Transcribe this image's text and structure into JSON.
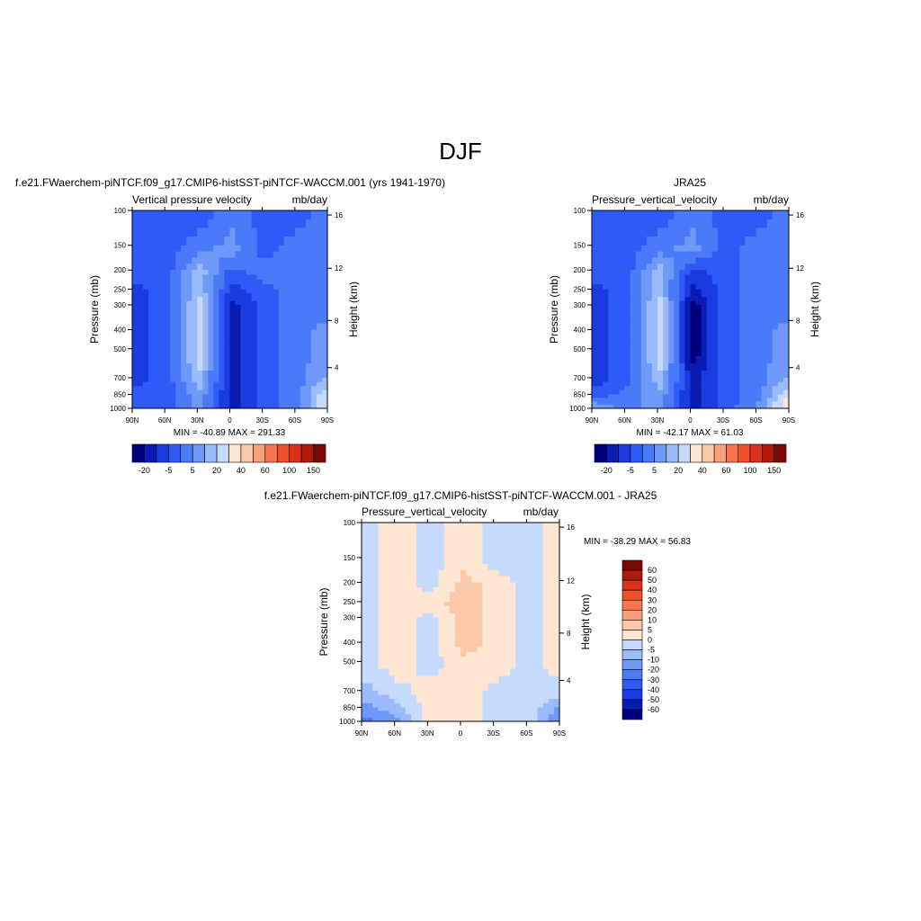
{
  "page_title": "DJF",
  "palettes": {
    "diverging": [
      "#00007e",
      "#0a1bb4",
      "#1a3be0",
      "#2f5af5",
      "#4a7af8",
      "#6f99f9",
      "#9bbbfb",
      "#c6dafd",
      "#fde6d2",
      "#fbc8a8",
      "#f9a07a",
      "#f77650",
      "#f1502c",
      "#d9311a",
      "#b01a0d",
      "#7c0707"
    ]
  },
  "chart_data": [
    {
      "id": "model",
      "type": "heatmap",
      "title": "f.e21.FWaerchem-piNTCF.f09_g17.CMIP6-histSST-piNTCF-WACCM.001 (yrs 1941-1970)",
      "left_label": "Vertical pressure velocity",
      "right_label": "mb/day",
      "ylabel": "Pressure (mb)",
      "ylabel_right": "Height (km)",
      "x_ticks": [
        "90N",
        "60N",
        "30N",
        "0",
        "30S",
        "60S",
        "90S"
      ],
      "y_ticks": [
        "100",
        "150",
        "200",
        "250",
        "300",
        "400",
        "500",
        "700",
        "850",
        "1000"
      ],
      "y_right_ticks": [
        "16",
        "12",
        "8",
        "4"
      ],
      "minmax": "MIN = -40.89  MAX = 291.33",
      "colorbar": {
        "orientation": "horizontal",
        "labels": [
          "-20",
          "-5",
          "5",
          "20",
          "40",
          "60",
          "100",
          "150"
        ]
      },
      "field": {
        "x_lat": [
          90,
          60,
          30,
          0,
          -30,
          -60,
          -90
        ],
        "pressure_mb": [
          100,
          150,
          200,
          250,
          300,
          400,
          500,
          700,
          850,
          1000
        ],
        "rows": [
          [
            3,
            3,
            3,
            4,
            3,
            3,
            4
          ],
          [
            3,
            3,
            4,
            5,
            3,
            4,
            4
          ],
          [
            3,
            3,
            6,
            3,
            4,
            4,
            4
          ],
          [
            2,
            3,
            6,
            2,
            3,
            4,
            4
          ],
          [
            2,
            3,
            7,
            1,
            3,
            4,
            4
          ],
          [
            2,
            3,
            7,
            1,
            3,
            4,
            5
          ],
          [
            2,
            3,
            7,
            1,
            3,
            4,
            5
          ],
          [
            2,
            3,
            6,
            1,
            3,
            4,
            6
          ],
          [
            3,
            3,
            5,
            1,
            3,
            4,
            8
          ],
          [
            3,
            3,
            5,
            1,
            3,
            4,
            8
          ]
        ]
      }
    },
    {
      "id": "obs",
      "type": "heatmap",
      "title": "JRA25",
      "left_label": "Pressure_vertical_velocity",
      "right_label": "mb/day",
      "ylabel": "Pressure (mb)",
      "ylabel_right": "Height (km)",
      "x_ticks": [
        "90N",
        "60N",
        "30N",
        "0",
        "30S",
        "60S",
        "90S"
      ],
      "y_ticks": [
        "100",
        "150",
        "200",
        "250",
        "300",
        "400",
        "500",
        "700",
        "850",
        "1000"
      ],
      "y_right_ticks": [
        "16",
        "12",
        "8",
        "4"
      ],
      "minmax": "MIN = -42.17  MAX =  61.03",
      "colorbar": {
        "orientation": "horizontal",
        "labels": [
          "-20",
          "-5",
          "5",
          "20",
          "40",
          "60",
          "100",
          "150"
        ]
      },
      "field": {
        "x_lat": [
          90,
          60,
          30,
          0,
          -30,
          -60,
          -90
        ],
        "pressure_mb": [
          100,
          150,
          200,
          250,
          300,
          400,
          500,
          700,
          850,
          1000
        ],
        "rows": [
          [
            3,
            3,
            3,
            4,
            3,
            3,
            4
          ],
          [
            3,
            3,
            4,
            5,
            3,
            4,
            4
          ],
          [
            3,
            3,
            6,
            2,
            3,
            4,
            4
          ],
          [
            2,
            3,
            6,
            1,
            3,
            4,
            4
          ],
          [
            2,
            3,
            7,
            0,
            3,
            4,
            4
          ],
          [
            2,
            3,
            7,
            0,
            3,
            4,
            5
          ],
          [
            2,
            3,
            7,
            0,
            3,
            4,
            5
          ],
          [
            2,
            3,
            6,
            1,
            3,
            4,
            6
          ],
          [
            3,
            4,
            5,
            1,
            3,
            4,
            8
          ],
          [
            6,
            4,
            5,
            1,
            3,
            5,
            9
          ]
        ]
      }
    },
    {
      "id": "diff",
      "type": "heatmap",
      "title": "f.e21.FWaerchem-piNTCF.f09_g17.CMIP6-histSST-piNTCF-WACCM.001 - JRA25",
      "left_label": "Pressure_vertical_velocity",
      "right_label": "mb/day",
      "ylabel": "Pressure (mb)",
      "ylabel_right": "Height (km)",
      "x_ticks": [
        "90N",
        "60N",
        "30N",
        "0",
        "30S",
        "60S",
        "90S"
      ],
      "y_ticks": [
        "100",
        "150",
        "200",
        "250",
        "300",
        "400",
        "500",
        "700",
        "850",
        "1000"
      ],
      "y_right_ticks": [
        "16",
        "12",
        "8",
        "4"
      ],
      "minmax": "MIN = -38.29  MAX =  56.83",
      "colorbar": {
        "orientation": "vertical",
        "labels": [
          "60",
          "50",
          "40",
          "30",
          "20",
          "10",
          "5",
          "0",
          "-5",
          "-10",
          "-20",
          "-30",
          "-40",
          "-50",
          "-60"
        ]
      },
      "field": {
        "x_lat": [
          90,
          60,
          30,
          0,
          -30,
          -60,
          -90
        ],
        "pressure_mb": [
          100,
          150,
          200,
          250,
          300,
          400,
          500,
          700,
          850,
          1000
        ],
        "rows": [
          [
            7,
            8,
            7,
            8,
            7,
            7,
            8
          ],
          [
            7,
            8,
            7,
            8,
            7,
            7,
            8
          ],
          [
            7,
            8,
            7,
            9,
            8,
            7,
            8
          ],
          [
            7,
            8,
            8,
            9,
            8,
            7,
            8
          ],
          [
            7,
            8,
            7,
            9,
            8,
            7,
            8
          ],
          [
            7,
            8,
            7,
            9,
            8,
            7,
            8
          ],
          [
            7,
            8,
            7,
            8,
            8,
            7,
            8
          ],
          [
            6,
            7,
            8,
            8,
            7,
            7,
            7
          ],
          [
            5,
            6,
            8,
            8,
            7,
            7,
            5
          ],
          [
            4,
            5,
            8,
            8,
            7,
            7,
            4
          ]
        ]
      }
    }
  ]
}
